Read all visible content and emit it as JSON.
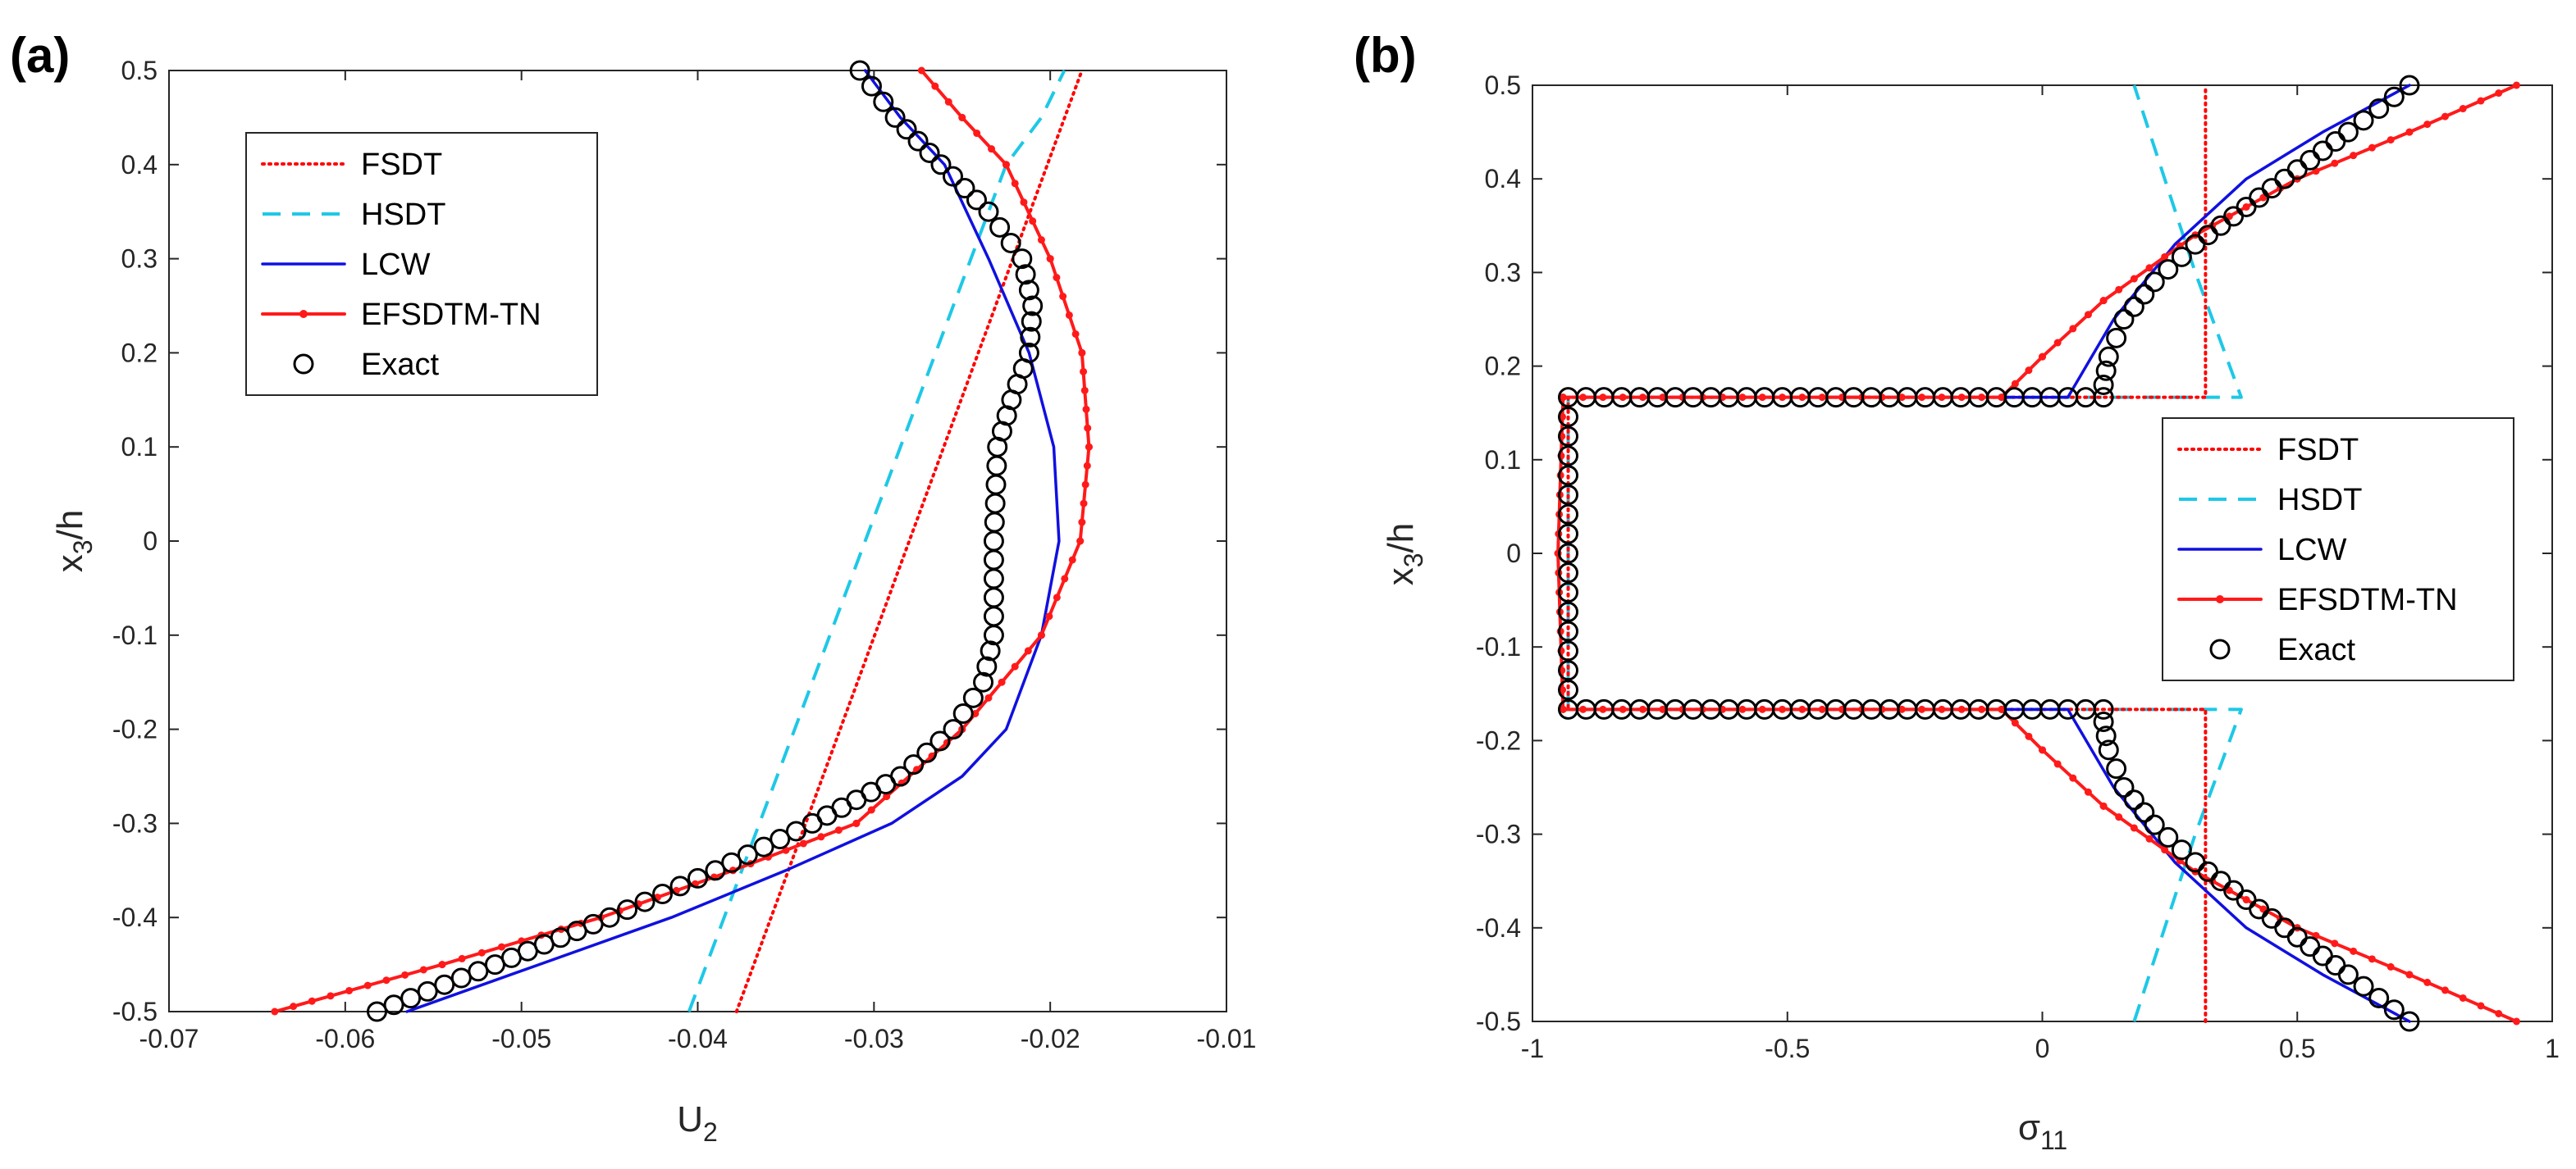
{
  "colors": {
    "FSDT": "#ff0000",
    "HSDT": "#1ec8e6",
    "LCW": "#1010e0",
    "EFSDTM-TN": "#ff1a1a",
    "Exact": "#000000"
  },
  "chart_data": [
    {
      "type": "line",
      "panel_label": "(a)",
      "xlabel": "U_2",
      "xlabel_main": "U",
      "xlabel_sub": "2",
      "ylabel": "x_3/h",
      "ylabel_main": "x",
      "ylabel_sub": "3",
      "ylabel_tail": "/h",
      "xlim": [
        -0.07,
        -0.01
      ],
      "ylim": [
        -0.5,
        0.5
      ],
      "xticks": [
        -0.07,
        -0.06,
        -0.05,
        -0.04,
        -0.03,
        -0.02,
        -0.01
      ],
      "xtick_labels": [
        "-0.07",
        "-0.06",
        "-0.05",
        "-0.04",
        "-0.03",
        "-0.02",
        "-0.01"
      ],
      "yticks": [
        -0.5,
        -0.4,
        -0.3,
        -0.2,
        -0.1,
        0,
        0.1,
        0.2,
        0.3,
        0.4,
        0.5
      ],
      "ytick_labels": [
        "-0.5",
        "-0.4",
        "-0.3",
        "-0.2",
        "-0.1",
        "0",
        "0.1",
        "0.2",
        "0.3",
        "0.4",
        "0.5"
      ],
      "legend": {
        "position": "upper-left",
        "entries": [
          "FSDT",
          "HSDT",
          "LCW",
          "EFSDTM-TN",
          "Exact"
        ]
      },
      "series": [
        {
          "name": "FSDT",
          "style": "dotted",
          "x": [
            -0.0378,
            -0.0182
          ],
          "y": [
            -0.5,
            0.5
          ]
        },
        {
          "name": "HSDT",
          "style": "dashed",
          "x": [
            -0.0405,
            -0.0385,
            -0.0365,
            -0.0345,
            -0.0325,
            -0.0305,
            -0.0285,
            -0.0265,
            -0.0245,
            -0.0225,
            -0.0205,
            -0.0192
          ],
          "y": [
            -0.5,
            -0.4,
            -0.3,
            -0.2,
            -0.1,
            0,
            0.1,
            0.2,
            0.3,
            0.4,
            0.45,
            0.5
          ]
        },
        {
          "name": "LCW",
          "style": "solid",
          "x": [
            -0.0565,
            -0.049,
            -0.0415,
            -0.035,
            -0.029,
            -0.025,
            -0.0225,
            -0.0205,
            -0.0195,
            -0.0198,
            -0.0212,
            -0.0235,
            -0.026,
            -0.0285,
            -0.0305
          ],
          "y": [
            -0.5,
            -0.45,
            -0.4,
            -0.35,
            -0.3,
            -0.25,
            -0.2,
            -0.1,
            0,
            0.1,
            0.2,
            0.3,
            0.4,
            0.45,
            0.5
          ]
        },
        {
          "name": "EFSDTM-TN",
          "style": "solid-dotmarks",
          "x": [
            -0.064,
            -0.0545,
            -0.0455,
            -0.038,
            -0.031,
            -0.025,
            -0.0205,
            -0.0183,
            -0.0178,
            -0.0182,
            -0.02,
            -0.0225,
            -0.025,
            -0.0273
          ],
          "y": [
            -0.5,
            -0.45,
            -0.4,
            -0.35,
            -0.3,
            -0.2,
            -0.1,
            0,
            0.1,
            0.2,
            0.3,
            0.4,
            0.45,
            0.5
          ]
        },
        {
          "name": "Exact",
          "style": "circle-markers",
          "x": [
            -0.0582,
            -0.0515,
            -0.045,
            -0.039,
            -0.0335,
            -0.0285,
            -0.0255,
            -0.0238,
            -0.0232,
            -0.0232,
            -0.023,
            -0.0222,
            -0.0212,
            -0.021,
            -0.0216,
            -0.0235,
            -0.0262,
            -0.0288,
            -0.0308
          ],
          "y": [
            -0.5,
            -0.45,
            -0.4,
            -0.35,
            -0.3,
            -0.25,
            -0.2,
            -0.15,
            -0.1,
            0,
            0.1,
            0.15,
            0.2,
            0.25,
            0.3,
            0.35,
            0.4,
            0.45,
            0.5
          ]
        }
      ]
    },
    {
      "type": "line",
      "panel_label": "(b)",
      "xlabel": "σ_11",
      "xlabel_main": "σ",
      "xlabel_sub": "11",
      "ylabel": "x_3/h",
      "ylabel_main": "x",
      "ylabel_sub": "3",
      "ylabel_tail": "/h",
      "xlim": [
        -1,
        1
      ],
      "ylim": [
        -0.5,
        0.5
      ],
      "xticks": [
        -1,
        -0.5,
        0,
        0.5,
        1
      ],
      "xtick_labels": [
        "-1",
        "-0.5",
        "0",
        "0.5",
        "1"
      ],
      "yticks": [
        -0.5,
        -0.4,
        -0.3,
        -0.2,
        -0.1,
        0,
        0.1,
        0.2,
        0.3,
        0.4,
        0.5
      ],
      "ytick_labels": [
        "-0.5",
        "-0.4",
        "-0.3",
        "-0.2",
        "-0.1",
        "0",
        "0.1",
        "0.2",
        "0.3",
        "0.4",
        "0.5"
      ],
      "legend": {
        "position": "right",
        "entries": [
          "FSDT",
          "HSDT",
          "LCW",
          "EFSDTM-TN",
          "Exact"
        ]
      },
      "series": [
        {
          "name": "FSDT",
          "style": "dotted",
          "x": [
            0.32,
            0.32,
            -0.93,
            -0.93,
            0.32,
            0.32
          ],
          "y": [
            -0.5,
            -0.1667,
            -0.1667,
            0.1667,
            0.1667,
            0.5
          ]
        },
        {
          "name": "HSDT",
          "style": "dashed",
          "x": [
            0.18,
            0.3,
            0.39,
            -0.93,
            -0.93,
            0.39,
            0.3,
            0.18
          ],
          "y": [
            -0.5,
            -0.3,
            -0.1667,
            -0.1667,
            0.1667,
            0.1667,
            0.3,
            0.5
          ]
        },
        {
          "name": "LCW",
          "style": "solid",
          "x": [
            0.72,
            0.55,
            0.4,
            0.26,
            0.14,
            0.05,
            -0.94,
            -0.95,
            -0.94,
            0.05,
            0.14,
            0.26,
            0.4,
            0.55,
            0.72
          ],
          "y": [
            -0.5,
            -0.45,
            -0.4,
            -0.33,
            -0.25,
            -0.1667,
            -0.1667,
            0,
            0.1667,
            0.1667,
            0.25,
            0.33,
            0.4,
            0.45,
            0.5
          ]
        },
        {
          "name": "EFSDTM-TN",
          "style": "solid-dotmarks",
          "x": [
            0.93,
            0.72,
            0.5,
            0.3,
            0.12,
            0.0,
            -0.08,
            -0.94,
            -0.95,
            -0.94,
            -0.08,
            0.0,
            0.12,
            0.3,
            0.5,
            0.72,
            0.93
          ],
          "y": [
            -0.5,
            -0.45,
            -0.4,
            -0.34,
            -0.27,
            -0.21,
            -0.1667,
            -0.1667,
            0,
            0.1667,
            0.1667,
            0.21,
            0.27,
            0.34,
            0.4,
            0.45,
            0.5
          ]
        },
        {
          "name": "Exact",
          "style": "circle-markers",
          "x": [
            0.72,
            0.6,
            0.5,
            0.4,
            0.3,
            0.22,
            0.16,
            0.13,
            0.12,
            0.12,
            -0.93,
            -0.93,
            -0.93,
            -0.93,
            -0.93,
            -0.93,
            -0.93,
            -0.93,
            -0.93,
            0.12,
            0.12,
            0.13,
            0.16,
            0.22,
            0.3,
            0.4,
            0.5,
            0.6,
            0.72
          ],
          "y": [
            -0.5,
            -0.45,
            -0.41,
            -0.37,
            -0.33,
            -0.29,
            -0.25,
            -0.21,
            -0.18,
            -0.1667,
            -0.1667,
            -0.125,
            -0.0833,
            -0.0417,
            0,
            0.0417,
            0.0833,
            0.125,
            0.1667,
            0.1667,
            0.18,
            0.21,
            0.25,
            0.29,
            0.33,
            0.37,
            0.41,
            0.45,
            0.5
          ]
        }
      ]
    }
  ]
}
